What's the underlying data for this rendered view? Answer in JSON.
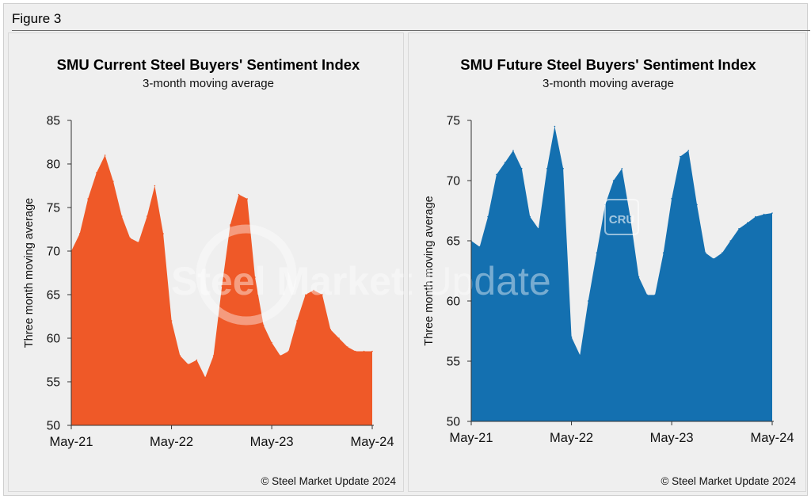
{
  "figure_label": "Figure 3",
  "copyright": "© Steel Market Update 2024",
  "watermark": {
    "bold": "Steel Market",
    "light": " Update",
    "badge": "CRU"
  },
  "chart_data": [
    {
      "type": "area",
      "title": "SMU Current Steel Buyers' Sentiment Index",
      "subtitle": "3-month moving average",
      "ylabel": "Three month moving average",
      "xlabel": "",
      "color": "#ef5928",
      "ylim": [
        50,
        85
      ],
      "yticks": [
        50,
        55,
        60,
        65,
        70,
        75,
        80,
        85
      ],
      "xticks": [
        "May-21",
        "May-22",
        "May-23",
        "May-24"
      ],
      "x": [
        "2021-05-01",
        "2021-06-01",
        "2021-07-01",
        "2021-08-01",
        "2021-09-01",
        "2021-10-01",
        "2021-11-01",
        "2021-12-01",
        "2022-01-01",
        "2022-02-01",
        "2022-03-01",
        "2022-04-01",
        "2022-05-01",
        "2022-06-01",
        "2022-07-01",
        "2022-08-01",
        "2022-09-01",
        "2022-10-01",
        "2022-11-01",
        "2022-12-01",
        "2023-01-01",
        "2023-02-01",
        "2023-03-01",
        "2023-04-01",
        "2023-05-01",
        "2023-06-01",
        "2023-07-01",
        "2023-08-01",
        "2023-09-01",
        "2023-10-01",
        "2023-11-01",
        "2023-12-01",
        "2024-01-01",
        "2024-02-01",
        "2024-03-01",
        "2024-04-01",
        "2024-05-01"
      ],
      "values": [
        70,
        72,
        76,
        79,
        81,
        78,
        74,
        71.5,
        71,
        74,
        77.5,
        72,
        62,
        58,
        57,
        57.5,
        55.5,
        58,
        66,
        73,
        76.5,
        76,
        67,
        61.5,
        59.5,
        58,
        58.5,
        62,
        65,
        65.5,
        65,
        61,
        60,
        59,
        58.5,
        58.5,
        58.5
      ]
    },
    {
      "type": "area",
      "title": "SMU Future Steel Buyers' Sentiment Index",
      "subtitle": "3-month moving average",
      "ylabel": "Three month moving average",
      "xlabel": "",
      "color": "#1470b0",
      "ylim": [
        50,
        75
      ],
      "yticks": [
        50,
        55,
        60,
        65,
        70,
        75
      ],
      "xticks": [
        "May-21",
        "May-22",
        "May-23",
        "May-24"
      ],
      "x": [
        "2021-05-01",
        "2021-06-01",
        "2021-07-01",
        "2021-08-01",
        "2021-09-01",
        "2021-10-01",
        "2021-11-01",
        "2021-12-01",
        "2022-01-01",
        "2022-02-01",
        "2022-03-01",
        "2022-04-01",
        "2022-05-01",
        "2022-06-01",
        "2022-07-01",
        "2022-08-01",
        "2022-09-01",
        "2022-10-01",
        "2022-11-01",
        "2022-12-01",
        "2023-01-01",
        "2023-02-01",
        "2023-03-01",
        "2023-04-01",
        "2023-05-01",
        "2023-06-01",
        "2023-07-01",
        "2023-08-01",
        "2023-09-01",
        "2023-10-01",
        "2023-11-01",
        "2023-12-01",
        "2024-01-01",
        "2024-02-01",
        "2024-03-01",
        "2024-04-01",
        "2024-05-01"
      ],
      "values": [
        65,
        64.5,
        67,
        70.5,
        71.5,
        72.5,
        71,
        67,
        66,
        71,
        74.5,
        71,
        57,
        55.5,
        60,
        64,
        68,
        70,
        71,
        67,
        62,
        60.5,
        60.5,
        64,
        68.5,
        72,
        72.5,
        68,
        64,
        63.5,
        64,
        65,
        66,
        66.5,
        67,
        67.2,
        67.3
      ]
    }
  ]
}
